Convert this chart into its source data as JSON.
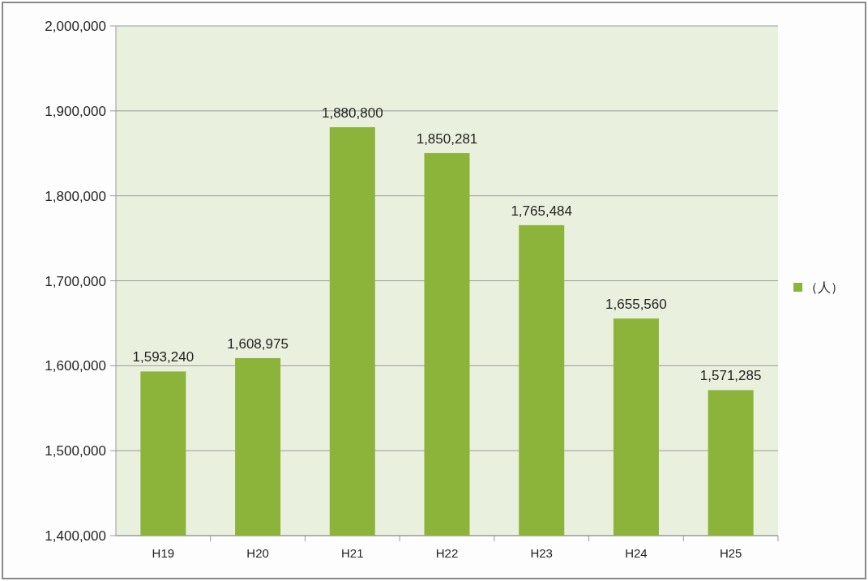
{
  "chart_data": {
    "type": "bar",
    "categories": [
      "H19",
      "H20",
      "H21",
      "H22",
      "H23",
      "H24",
      "H25"
    ],
    "series": [
      {
        "name": "（人）",
        "color": "#8db43a",
        "values": [
          1593240,
          1608975,
          1880800,
          1850281,
          1765484,
          1655560,
          1571285
        ],
        "value_labels": [
          "1,593,240",
          "1,608,975",
          "1,880,800",
          "1,850,281",
          "1,765,484",
          "1,655,560",
          "1,571,285"
        ]
      }
    ],
    "ylim": [
      1400000,
      2000000
    ],
    "yticks": [
      {
        "value": 1400000,
        "label": "1,400,000"
      },
      {
        "value": 1500000,
        "label": "1,500,000"
      },
      {
        "value": 1600000,
        "label": "1,600,000"
      },
      {
        "value": 1700000,
        "label": "1,700,000"
      },
      {
        "value": 1800000,
        "label": "1,800,000"
      },
      {
        "value": 1900000,
        "label": "1,900,000"
      },
      {
        "value": 2000000,
        "label": "2,000,000"
      }
    ],
    "grid": "y",
    "legend": "right"
  }
}
